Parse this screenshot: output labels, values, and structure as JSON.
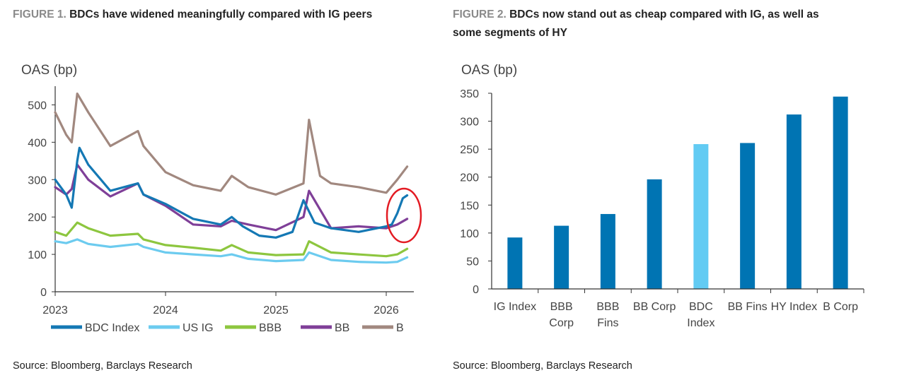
{
  "figure1": {
    "label": "FIGURE 1.",
    "title": "BDCs have widened meaningfully compared with IG peers",
    "source": "Source: Bloomberg, Barclays Research"
  },
  "figure2": {
    "label": "FIGURE 2.",
    "title_line1": "BDCs now stand out as cheap compared with IG, as well as",
    "title_line2": "some segments of HY",
    "source": "Source: Bloomberg, Barclays Research"
  },
  "chart_data": [
    {
      "type": "line",
      "ylabel": "OAS (bp)",
      "ylim": [
        0,
        550
      ],
      "yticks": [
        0,
        100,
        200,
        300,
        400,
        500
      ],
      "xlim": [
        2023.0,
        2026.25
      ],
      "xtick_values": [
        2023,
        2024,
        2025,
        2026
      ],
      "xticks": [
        "2023",
        "2024",
        "2025",
        "2026"
      ],
      "grid": false,
      "legend": "bottom",
      "highlight": "red circle around the latest values of the BDC Index",
      "series": [
        {
          "name": "BDC Index",
          "color": "#1478B4",
          "x": [
            2023.0,
            2023.1,
            2023.15,
            2023.2,
            2023.22,
            2023.3,
            2023.5,
            2023.75,
            2023.8,
            2024.0,
            2024.25,
            2024.5,
            2024.6,
            2024.7,
            2024.85,
            2025.0,
            2025.15,
            2025.25,
            2025.35,
            2025.5,
            2025.75,
            2026.0,
            2026.05,
            2026.1,
            2026.15,
            2026.19
          ],
          "y": [
            300,
            260,
            225,
            350,
            385,
            340,
            270,
            290,
            260,
            235,
            195,
            180,
            200,
            175,
            150,
            145,
            160,
            245,
            185,
            170,
            160,
            175,
            180,
            210,
            250,
            258
          ]
        },
        {
          "name": "US IG",
          "color": "#6CCBEF",
          "x": [
            2023.0,
            2023.1,
            2023.2,
            2023.3,
            2023.5,
            2023.75,
            2023.8,
            2024.0,
            2024.25,
            2024.5,
            2024.6,
            2024.75,
            2025.0,
            2025.25,
            2025.3,
            2025.5,
            2025.75,
            2026.0,
            2026.1,
            2026.19
          ],
          "y": [
            135,
            130,
            140,
            128,
            120,
            128,
            120,
            105,
            100,
            95,
            100,
            88,
            82,
            85,
            105,
            85,
            80,
            78,
            80,
            92
          ]
        },
        {
          "name": "BBB",
          "color": "#8DC63F",
          "x": [
            2023.0,
            2023.1,
            2023.2,
            2023.3,
            2023.5,
            2023.75,
            2023.8,
            2024.0,
            2024.25,
            2024.5,
            2024.6,
            2024.75,
            2025.0,
            2025.25,
            2025.3,
            2025.5,
            2025.75,
            2026.0,
            2026.1,
            2026.19
          ],
          "y": [
            160,
            150,
            185,
            170,
            150,
            155,
            140,
            125,
            118,
            110,
            125,
            105,
            98,
            100,
            135,
            105,
            100,
            95,
            100,
            115
          ]
        },
        {
          "name": "BB",
          "color": "#7F3F98",
          "x": [
            2023.0,
            2023.1,
            2023.15,
            2023.2,
            2023.3,
            2023.5,
            2023.75,
            2023.8,
            2024.0,
            2024.25,
            2024.5,
            2024.6,
            2024.75,
            2025.0,
            2025.25,
            2025.3,
            2025.5,
            2025.75,
            2026.0,
            2026.1,
            2026.19
          ],
          "y": [
            280,
            260,
            275,
            340,
            300,
            255,
            290,
            260,
            230,
            180,
            175,
            190,
            180,
            165,
            200,
            270,
            170,
            175,
            170,
            180,
            195
          ]
        },
        {
          "name": "B",
          "color": "#A1887F",
          "x": [
            2023.0,
            2023.1,
            2023.15,
            2023.2,
            2023.3,
            2023.5,
            2023.75,
            2023.8,
            2024.0,
            2024.25,
            2024.5,
            2024.6,
            2024.75,
            2025.0,
            2025.25,
            2025.3,
            2025.4,
            2025.5,
            2025.75,
            2026.0,
            2026.1,
            2026.19
          ],
          "y": [
            480,
            420,
            400,
            530,
            480,
            390,
            430,
            390,
            320,
            285,
            270,
            310,
            280,
            260,
            290,
            460,
            310,
            290,
            280,
            265,
            300,
            335
          ]
        }
      ]
    },
    {
      "type": "bar",
      "ylabel": "OAS (bp)",
      "ylim": [
        0,
        350
      ],
      "yticks": [
        0,
        50,
        100,
        150,
        200,
        250,
        300,
        350
      ],
      "categories": [
        "IG Index",
        "BBB Corp",
        "BBB Fins",
        "BB Corp",
        "BDC Index",
        "BB Fins",
        "HY Index",
        "B Corp"
      ],
      "values": [
        92,
        113,
        134,
        196,
        259,
        261,
        312,
        344
      ],
      "colors": [
        "#0074B3",
        "#0074B3",
        "#0074B3",
        "#0074B3",
        "#62CBF3",
        "#0074B3",
        "#0074B3",
        "#0074B3"
      ],
      "grid": false
    }
  ]
}
